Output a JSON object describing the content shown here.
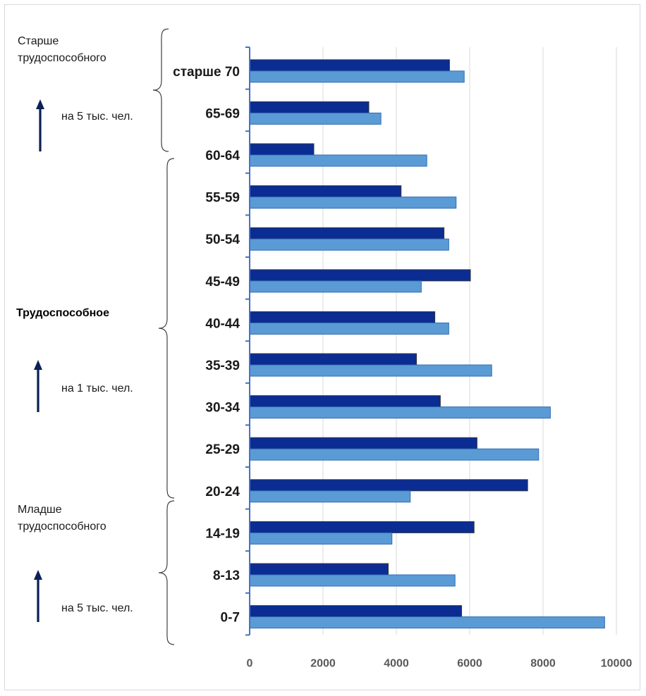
{
  "colors": {
    "series_dark": "#0A2C93",
    "series_light": "#5B9BD5",
    "axis": "#4472C4",
    "grid": "#D9D9D9",
    "arrow": "#0B2055"
  },
  "groups": [
    {
      "label": "Старше\nтрудоспособного",
      "note": "на 5 тыс. чел.",
      "arrow_icon": "up-arrow-icon"
    },
    {
      "label": "Трудоспособное",
      "note": "на 1 тыс. чел.",
      "arrow_icon": "up-arrow-icon"
    },
    {
      "label": "Младше\nтрудоспособного",
      "note": "на 5 тыс. чел.",
      "arrow_icon": "up-arrow-icon"
    }
  ],
  "chart_data": {
    "type": "bar",
    "orientation": "horizontal",
    "categories": [
      "старше 70",
      "65-69",
      "60-64",
      "55-59",
      "50-54",
      "45-49",
      "40-44",
      "35-39",
      "30-34",
      "25-29",
      "20-24",
      "14-19",
      "8-13",
      "0-7"
    ],
    "series": [
      {
        "color": "#0A2C93",
        "values": [
          5450,
          3250,
          1750,
          4130,
          5300,
          6020,
          5050,
          4550,
          5200,
          6200,
          7580,
          6120,
          3780,
          5780
        ]
      },
      {
        "color": "#5B9BD5",
        "values": [
          5850,
          3580,
          4830,
          5630,
          5430,
          4680,
          5430,
          6600,
          8200,
          7880,
          4380,
          3880,
          5600,
          9680
        ]
      }
    ],
    "xlim": [
      0,
      10000
    ],
    "x_ticks": [
      "0",
      "2000",
      "4000",
      "6000",
      "8000",
      "10000"
    ],
    "xlabel": "",
    "ylabel": "",
    "grid": "vertical",
    "legend": "none"
  }
}
